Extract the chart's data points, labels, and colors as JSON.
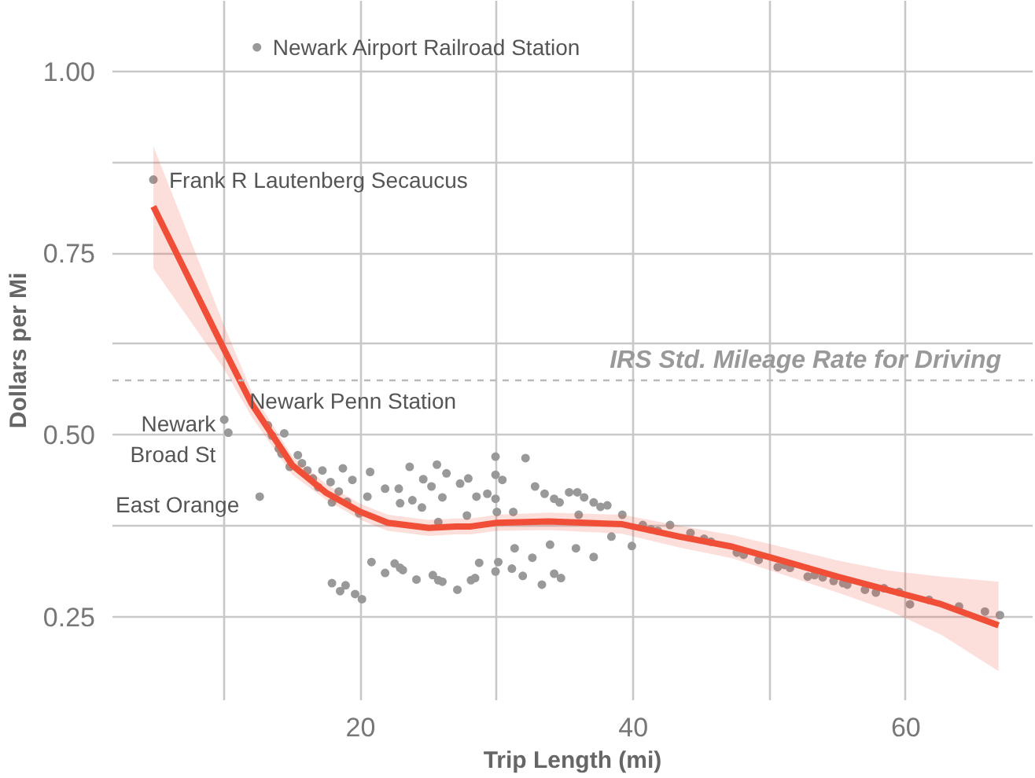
{
  "chart_data": {
    "type": "scatter",
    "xlabel": "Trip Length (mi)",
    "ylabel": "Dollars per Mi",
    "xlim": [
      1.8,
      69.3
    ],
    "ylim": [
      0.135,
      1.097
    ],
    "xticks": [
      {
        "value": 10,
        "label": null
      },
      20,
      {
        "value": 30,
        "label": null
      },
      40,
      {
        "value": 50,
        "label": null
      },
      60
    ],
    "yticks": [
      {
        "value": 0.25,
        "label": "0.25"
      },
      {
        "value": 0.375,
        "label": null
      },
      {
        "value": 0.5,
        "label": "0.50"
      },
      {
        "value": 0.625,
        "label": null
      },
      0.75,
      {
        "value": 0.875,
        "label": null
      },
      {
        "value": 1.0,
        "label": "1.00"
      }
    ],
    "grid": true,
    "marker": "circle",
    "series": [
      {
        "color": "#999999",
        "x": [
          4.8,
          12.4,
          10.0,
          10.3,
          12.6,
          13.2,
          13.5,
          14.4,
          14.0,
          14.2,
          14.8,
          15.4,
          15.7,
          16.1,
          16.5,
          17.2,
          16.9,
          17.8,
          17.9,
          18.4,
          18.7,
          19.0,
          19.4,
          19.9,
          20.5,
          20.7,
          21.8,
          22.8,
          22.9,
          23.6,
          23.8,
          24.5,
          24.6,
          25.2,
          25.6,
          25.7,
          26.0,
          26.3,
          27.3,
          27.8,
          27.9,
          28.5,
          29.3,
          29.9,
          29.9,
          30.4,
          29.9,
          30.0,
          31.2,
          32.1,
          32.8,
          33.5,
          34.2,
          34.6,
          17.9,
          18.5,
          18.9,
          19.6,
          20.1,
          20.8,
          21.8,
          22.5,
          22.9,
          23.1,
          24.1,
          25.3,
          25.7,
          26.0,
          27.1,
          28.1,
          28.4,
          28.7,
          29.9,
          30.1,
          31.1,
          31.3,
          31.9,
          32.6,
          33.3,
          33.9,
          34.2,
          34.7,
          35.3,
          35.9,
          36.0,
          36.4,
          37.1,
          37.6,
          38.1,
          35.8,
          37.1,
          38.4,
          39.2,
          39.9,
          40.7,
          41.3,
          41.8,
          42.7,
          44.2,
          45.2,
          45.7,
          47.6,
          48.1,
          49.2,
          50.6,
          51.1,
          51.5,
          52.8,
          53.3,
          53.9,
          54.7,
          55.4,
          55.7,
          57.0,
          57.8,
          58.4,
          59.5,
          60.3,
          61.7,
          63.9,
          65.8,
          66.9
        ],
        "values": [
          0.851,
          1.033,
          0.521,
          0.503,
          0.415,
          0.513,
          0.499,
          0.502,
          0.481,
          0.474,
          0.456,
          0.472,
          0.461,
          0.451,
          0.44,
          0.451,
          0.428,
          0.435,
          0.407,
          0.422,
          0.454,
          0.408,
          0.438,
          0.392,
          0.415,
          0.449,
          0.426,
          0.426,
          0.406,
          0.456,
          0.41,
          0.4,
          0.439,
          0.429,
          0.459,
          0.38,
          0.414,
          0.447,
          0.433,
          0.389,
          0.44,
          0.415,
          0.419,
          0.47,
          0.445,
          0.438,
          0.412,
          0.394,
          0.394,
          0.468,
          0.429,
          0.419,
          0.412,
          0.407,
          0.296,
          0.285,
          0.293,
          0.281,
          0.274,
          0.325,
          0.31,
          0.323,
          0.317,
          0.314,
          0.301,
          0.307,
          0.3,
          0.298,
          0.287,
          0.3,
          0.303,
          0.324,
          0.312,
          0.325,
          0.316,
          0.344,
          0.306,
          0.331,
          0.294,
          0.349,
          0.309,
          0.303,
          0.421,
          0.421,
          0.39,
          0.414,
          0.407,
          0.401,
          0.403,
          0.344,
          0.332,
          0.36,
          0.39,
          0.347,
          0.376,
          0.37,
          0.368,
          0.376,
          0.365,
          0.357,
          0.353,
          0.338,
          0.335,
          0.328,
          0.318,
          0.321,
          0.317,
          0.305,
          0.307,
          0.304,
          0.299,
          0.296,
          0.294,
          0.287,
          0.283,
          0.289,
          0.284,
          0.267,
          0.273,
          0.264,
          0.257,
          0.252
        ]
      },
      {
        "type": "line",
        "color": "#f04e37",
        "line_style": "solid",
        "marker": "none",
        "x": [
          4.8,
          10,
          12,
          15,
          17.5,
          20,
          22,
          25,
          27,
          28.1,
          30,
          33.8,
          39.2,
          43.4,
          47.3,
          51.1,
          55,
          58.8,
          62.6,
          66.8
        ],
        "values": [
          0.814,
          0.617,
          0.543,
          0.458,
          0.42,
          0.394,
          0.379,
          0.372,
          0.374,
          0.374,
          0.379,
          0.381,
          0.377,
          0.36,
          0.346,
          0.326,
          0.305,
          0.286,
          0.267,
          0.238
        ],
        "lower": [
          0.729,
          0.59,
          0.525,
          0.445,
          0.41,
          0.383,
          0.368,
          0.361,
          0.363,
          0.363,
          0.368,
          0.369,
          0.364,
          0.345,
          0.33,
          0.307,
          0.283,
          0.258,
          0.225,
          0.175
        ],
        "upper": [
          0.897,
          0.65,
          0.56,
          0.47,
          0.432,
          0.405,
          0.39,
          0.383,
          0.385,
          0.385,
          0.39,
          0.393,
          0.39,
          0.375,
          0.362,
          0.345,
          0.327,
          0.313,
          0.305,
          0.298
        ]
      }
    ],
    "ref_lines": [
      {
        "axis": "y",
        "value": 0.575,
        "label": "IRS Std. Mileage Rate for Driving",
        "color": "#bbbbbb",
        "line_style": "dashed"
      }
    ],
    "annotations": [
      {
        "text": "Frank R Lautenberg Secaucus",
        "x": 4.8,
        "y": 0.851
      },
      {
        "text": "Newark Airport Railroad Station",
        "x": 12.4,
        "y": 1.033
      },
      {
        "text": "Newark Penn Station",
        "x": 10.0,
        "y": 0.521
      },
      {
        "text": "Newark\nBroad St",
        "x": 10.3,
        "y": 0.503
      },
      {
        "text": "East Orange",
        "x": 12.6,
        "y": 0.415
      }
    ]
  }
}
